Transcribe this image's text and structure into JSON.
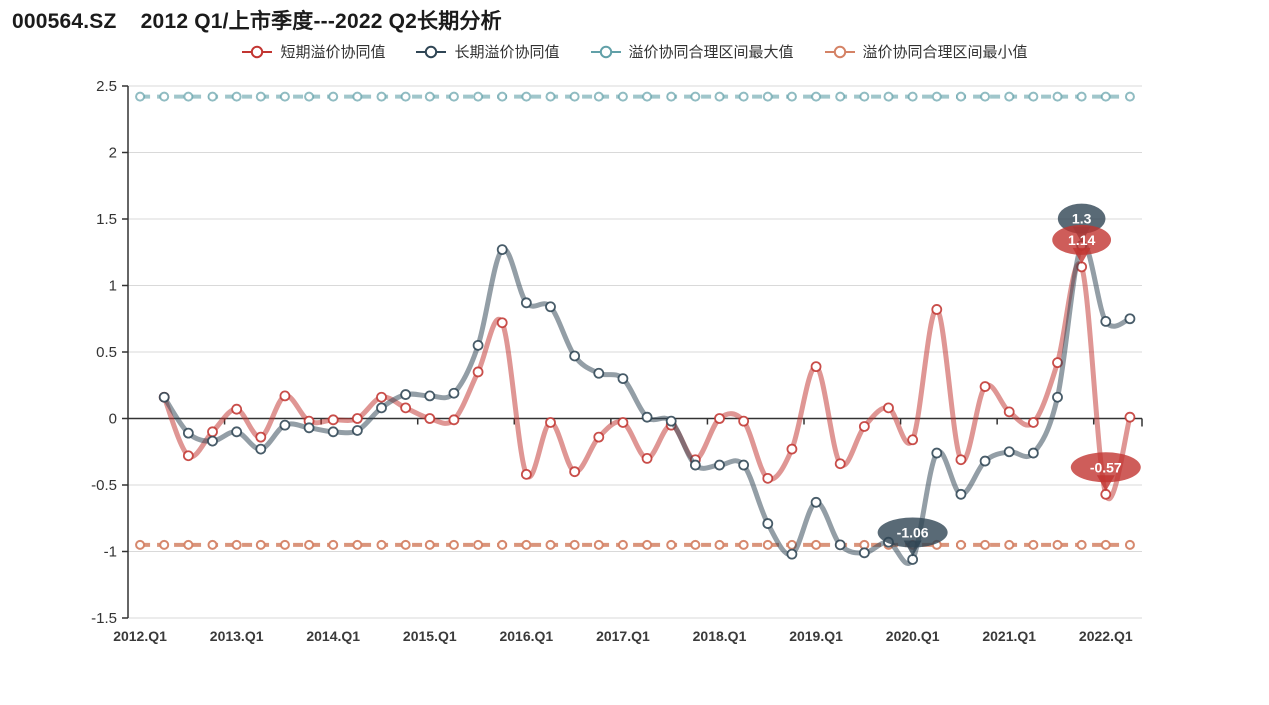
{
  "title": "000564.SZ    2012 Q1/上市季度---2022 Q2长期分析",
  "legend": [
    {
      "label": "短期溢价协同值",
      "color": "#c23531"
    },
    {
      "label": "长期溢价协同值",
      "color": "#2f4554"
    },
    {
      "label": "溢价协同合理区间最大值",
      "color": "#61a0a8"
    },
    {
      "label": "溢价协同合理区间最小值",
      "color": "#d48265"
    }
  ],
  "chart_data": {
    "type": "line",
    "title": "000564.SZ    2012 Q1/上市季度---2022 Q2长期分析",
    "x_categories": [
      "2012.Q1",
      "2012.Q2",
      "2012.Q3",
      "2012.Q4",
      "2013.Q1",
      "2013.Q2",
      "2013.Q3",
      "2013.Q4",
      "2014.Q1",
      "2014.Q2",
      "2014.Q3",
      "2014.Q4",
      "2015.Q1",
      "2015.Q2",
      "2015.Q3",
      "2015.Q4",
      "2016.Q1",
      "2016.Q2",
      "2016.Q3",
      "2016.Q4",
      "2017.Q1",
      "2017.Q2",
      "2017.Q3",
      "2017.Q4",
      "2018.Q1",
      "2018.Q2",
      "2018.Q3",
      "2018.Q4",
      "2019.Q1",
      "2019.Q2",
      "2019.Q3",
      "2019.Q4",
      "2020.Q1",
      "2020.Q2",
      "2020.Q3",
      "2020.Q4",
      "2021.Q1",
      "2021.Q2",
      "2021.Q3",
      "2021.Q4",
      "2022.Q1",
      "2022.Q2"
    ],
    "x_axis_labels": [
      "2012.Q1",
      "2013.Q1",
      "2014.Q1",
      "2015.Q1",
      "2016.Q1",
      "2017.Q1",
      "2018.Q1",
      "2019.Q1",
      "2020.Q1",
      "2021.Q1",
      "2022.Q1"
    ],
    "y_ticks": [
      {
        "label": "2.5",
        "value": 2.5
      },
      {
        "label": "2",
        "value": 2
      },
      {
        "label": "1.5",
        "value": 1.5
      },
      {
        "label": "1",
        "value": 1
      },
      {
        "label": "0.5",
        "value": 0.5
      },
      {
        "label": "0",
        "value": 0
      },
      {
        "label": "-0.5",
        "value": -0.5
      },
      {
        "label": "-1",
        "value": -1
      },
      {
        "label": "-1.5",
        "value": -1.5
      }
    ],
    "ylim": [
      -1.5,
      2.5
    ],
    "grid": true,
    "legend_position": "top",
    "series": [
      {
        "name": "短期溢价协同值",
        "key": "short",
        "color": "#c23531",
        "style": "solid",
        "start_index": 1,
        "values": [
          0.16,
          -0.28,
          -0.1,
          0.07,
          -0.14,
          0.17,
          -0.02,
          -0.01,
          0.0,
          0.16,
          0.08,
          0.0,
          -0.01,
          0.35,
          0.72,
          -0.42,
          -0.03,
          -0.4,
          -0.14,
          -0.03,
          -0.3,
          -0.05,
          -0.31,
          0.0,
          -0.02,
          -0.45,
          -0.23,
          0.39,
          -0.34,
          -0.06,
          0.08,
          -0.16,
          0.82,
          -0.31,
          0.24,
          0.05,
          -0.03,
          0.42,
          1.14,
          -0.57,
          0.01
        ]
      },
      {
        "name": "长期溢价协同值",
        "key": "long",
        "color": "#2f4554",
        "style": "solid",
        "start_index": 1,
        "values": [
          0.16,
          -0.11,
          -0.17,
          -0.1,
          -0.23,
          -0.05,
          -0.07,
          -0.1,
          -0.09,
          0.08,
          0.18,
          0.17,
          0.19,
          0.55,
          1.27,
          0.87,
          0.84,
          0.47,
          0.34,
          0.3,
          0.01,
          -0.02,
          -0.35,
          -0.35,
          -0.35,
          -0.79,
          -1.02,
          -0.63,
          -0.95,
          -1.01,
          -0.93,
          -1.06,
          -0.26,
          -0.57,
          -0.32,
          -0.25,
          -0.26,
          0.16,
          1.3,
          0.73,
          0.75
        ]
      },
      {
        "name": "溢价协同合理区间最大值",
        "key": "max",
        "color": "#61a0a8",
        "style": "dashed",
        "constant": 2.42
      },
      {
        "name": "溢价协同合理区间最小值",
        "key": "min",
        "color": "#d48265",
        "style": "dashed",
        "constant": -0.95
      }
    ],
    "annotations": [
      {
        "text": "1.3",
        "series_key": "long",
        "category": "2021.Q4",
        "value": 1.3
      },
      {
        "text": "1.14",
        "series_key": "short",
        "category": "2021.Q4",
        "value": 1.14
      },
      {
        "text": "-1.06",
        "series_key": "long",
        "category": "2020.Q1",
        "value": -1.06
      },
      {
        "text": "-0.57",
        "series_key": "short",
        "category": "2022.Q1",
        "value": -0.57
      }
    ]
  }
}
